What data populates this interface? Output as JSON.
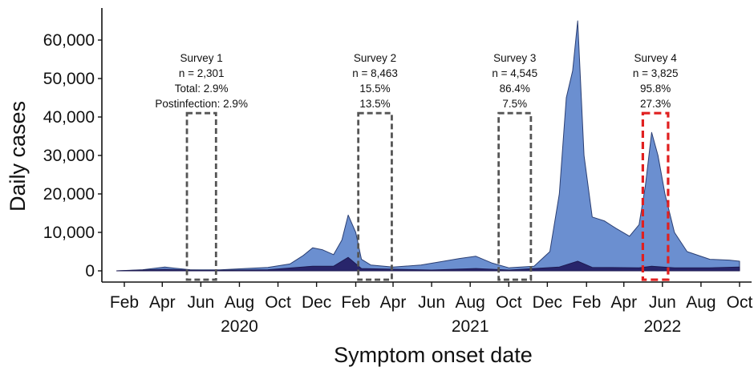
{
  "chart_data": {
    "type": "area",
    "xlabel": "Symptom onset date",
    "ylabel": "Daily cases",
    "ylim": [
      0,
      65000
    ],
    "xlim": [
      "2020-01-15",
      "2022-10-15"
    ],
    "yticks": [
      {
        "value": 0,
        "label": "0"
      },
      {
        "value": 10000,
        "label": "10,000"
      },
      {
        "value": 20000,
        "label": "20,000"
      },
      {
        "value": 30000,
        "label": "30,000"
      },
      {
        "value": 40000,
        "label": "40,000"
      },
      {
        "value": 50000,
        "label": "50,000"
      },
      {
        "value": 60000,
        "label": "60,000"
      }
    ],
    "xticks": [
      {
        "date": "2020-02-01",
        "label": "Feb"
      },
      {
        "date": "2020-04-01",
        "label": "Apr"
      },
      {
        "date": "2020-06-01",
        "label": "Jun"
      },
      {
        "date": "2020-08-01",
        "label": "Aug"
      },
      {
        "date": "2020-10-01",
        "label": "Oct"
      },
      {
        "date": "2020-12-01",
        "label": "Dec"
      },
      {
        "date": "2021-02-01",
        "label": "Feb"
      },
      {
        "date": "2021-04-01",
        "label": "Apr"
      },
      {
        "date": "2021-06-01",
        "label": "Jun"
      },
      {
        "date": "2021-08-01",
        "label": "Aug"
      },
      {
        "date": "2021-10-01",
        "label": "Oct"
      },
      {
        "date": "2021-12-01",
        "label": "Dec"
      },
      {
        "date": "2022-02-01",
        "label": "Feb"
      },
      {
        "date": "2022-04-01",
        "label": "Apr"
      },
      {
        "date": "2022-06-01",
        "label": "Jun"
      },
      {
        "date": "2022-08-01",
        "label": "Aug"
      },
      {
        "date": "2022-10-01",
        "label": "Oct"
      }
    ],
    "years": [
      {
        "date": "2020-08-01",
        "label": "2020"
      },
      {
        "date": "2021-08-01",
        "label": "2021"
      },
      {
        "date": "2022-06-01",
        "label": "2022"
      }
    ],
    "series": [
      {
        "color": "#6b8fd0",
        "edge_color": "#2b3f73",
        "points": [
          [
            "2020-01-20",
            0
          ],
          [
            "2020-03-01",
            300
          ],
          [
            "2020-04-05",
            1000
          ],
          [
            "2020-04-20",
            700
          ],
          [
            "2020-05-15",
            300
          ],
          [
            "2020-07-01",
            250
          ],
          [
            "2020-08-10",
            600
          ],
          [
            "2020-09-15",
            900
          ],
          [
            "2020-10-20",
            1800
          ],
          [
            "2020-11-10",
            4000
          ],
          [
            "2020-11-25",
            6000
          ],
          [
            "2020-12-10",
            5500
          ],
          [
            "2020-12-28",
            4200
          ],
          [
            "2021-01-10",
            8000
          ],
          [
            "2021-01-20",
            14500
          ],
          [
            "2021-02-01",
            10000
          ],
          [
            "2021-02-10",
            3000
          ],
          [
            "2021-02-25",
            1500
          ],
          [
            "2021-04-01",
            1000
          ],
          [
            "2021-05-15",
            1500
          ],
          [
            "2021-06-20",
            2500
          ],
          [
            "2021-07-15",
            3200
          ],
          [
            "2021-08-10",
            3800
          ],
          [
            "2021-09-05",
            2000
          ],
          [
            "2021-10-01",
            800
          ],
          [
            "2021-11-10",
            1200
          ],
          [
            "2021-12-05",
            5000
          ],
          [
            "2021-12-20",
            20000
          ],
          [
            "2021-12-31",
            45000
          ],
          [
            "2022-01-10",
            52000
          ],
          [
            "2022-01-18",
            65000
          ],
          [
            "2022-01-28",
            30000
          ],
          [
            "2022-02-10",
            14000
          ],
          [
            "2022-03-01",
            13000
          ],
          [
            "2022-03-20",
            11000
          ],
          [
            "2022-04-10",
            9000
          ],
          [
            "2022-04-25",
            12000
          ],
          [
            "2022-05-05",
            22000
          ],
          [
            "2022-05-15",
            36000
          ],
          [
            "2022-05-25",
            30000
          ],
          [
            "2022-06-05",
            20000
          ],
          [
            "2022-06-20",
            10000
          ],
          [
            "2022-07-10",
            5000
          ],
          [
            "2022-08-15",
            3000
          ],
          [
            "2022-09-15",
            2800
          ],
          [
            "2022-10-01",
            2500
          ]
        ]
      },
      {
        "color": "#28256b",
        "edge_color": "#1d1a52",
        "points": [
          [
            "2020-01-20",
            0
          ],
          [
            "2020-04-05",
            400
          ],
          [
            "2020-06-01",
            100
          ],
          [
            "2020-09-15",
            300
          ],
          [
            "2020-11-25",
            1200
          ],
          [
            "2020-12-28",
            1200
          ],
          [
            "2021-01-20",
            3500
          ],
          [
            "2021-02-10",
            600
          ],
          [
            "2021-06-01",
            200
          ],
          [
            "2021-08-10",
            600
          ],
          [
            "2021-10-01",
            200
          ],
          [
            "2021-12-20",
            1000
          ],
          [
            "2022-01-18",
            2500
          ],
          [
            "2022-02-10",
            900
          ],
          [
            "2022-04-25",
            800
          ],
          [
            "2022-05-15",
            1200
          ],
          [
            "2022-06-20",
            800
          ],
          [
            "2022-08-15",
            800
          ],
          [
            "2022-10-01",
            1000
          ]
        ]
      }
    ],
    "surveys": [
      {
        "name": "Survey 1",
        "n": "n = 2,301",
        "line3": "Total: 2.9%",
        "line4": "Postinfection: 2.9%",
        "start": "2020-05-10",
        "end": "2020-06-25",
        "color": "#555555"
      },
      {
        "name": "Survey 2",
        "n": "n = 8,463",
        "line3": "15.5%",
        "line4": "13.5%",
        "start": "2021-02-05",
        "end": "2021-03-30",
        "color": "#555555"
      },
      {
        "name": "Survey 3",
        "n": "n = 4,545",
        "line3": "86.4%",
        "line4": "7.5%",
        "start": "2021-09-15",
        "end": "2021-11-05",
        "color": "#555555"
      },
      {
        "name": "Survey 4",
        "n": "n = 3,825",
        "line3": "95.8%",
        "line4": "27.3%",
        "start": "2022-05-01",
        "end": "2022-06-10",
        "color": "#e02020"
      }
    ],
    "grid": false,
    "legend": "none"
  }
}
